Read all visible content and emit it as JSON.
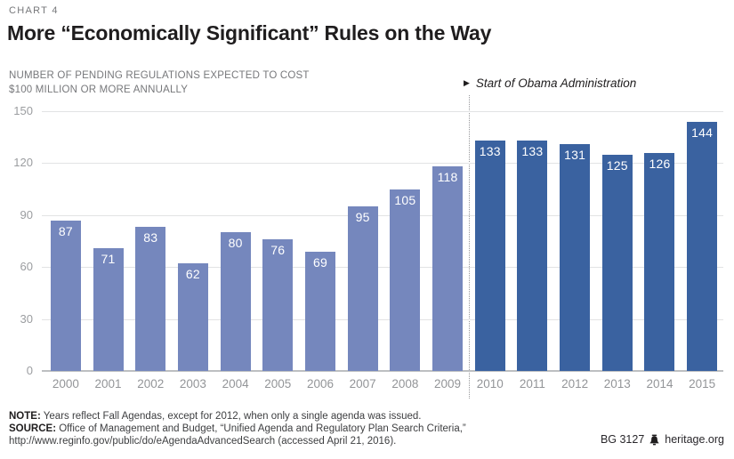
{
  "header": {
    "kicker": "CHART 4",
    "title": "More “Economically Significant” Rules on the Way",
    "subtitle_line1": "NUMBER OF PENDING REGULATIONS EXPECTED TO COST",
    "subtitle_line2": "$100 MILLION OR MORE ANNUALLY"
  },
  "annotation": {
    "marker": "▶",
    "label": "Start of Obama Administration"
  },
  "chart_data": {
    "type": "bar",
    "title": "More “Economically Significant” Rules on the Way",
    "subtitle": "Number of pending regulations expected to cost $100 million or more annually",
    "categories": [
      "2000",
      "2001",
      "2002",
      "2003",
      "2004",
      "2005",
      "2006",
      "2007",
      "2008",
      "2009",
      "2010",
      "2011",
      "2012",
      "2013",
      "2014",
      "2015"
    ],
    "values": [
      87,
      71,
      83,
      62,
      80,
      76,
      69,
      95,
      105,
      118,
      133,
      133,
      131,
      125,
      126,
      144
    ],
    "ylim": [
      0,
      150
    ],
    "yticks": [
      0,
      30,
      60,
      90,
      120,
      150
    ],
    "grid": "horizontal",
    "value_labels_position": "inside-top",
    "value_label_color": "#ffffff",
    "colors": {
      "pre_obama_bar": "#7587bd",
      "obama_bar": "#3a62a0"
    },
    "divider": {
      "after_category": "2009",
      "label": "Start of Obama Administration",
      "style": "dotted"
    }
  },
  "footer": {
    "note_label": "NOTE:",
    "note_text": "Years reflect Fall Agendas, except for 2012, when only a single agenda was issued.",
    "source_label": "SOURCE:",
    "source_line1": "Office of Management and Budget, “Unified Agenda and Regulatory Plan Search Criteria,”",
    "source_line2": "http://www.reginfo.gov/public/do/eAgendaAdvancedSearch (accessed April 21, 2016).",
    "credit_id": "BG 3127",
    "credit_site": "heritage.org"
  }
}
